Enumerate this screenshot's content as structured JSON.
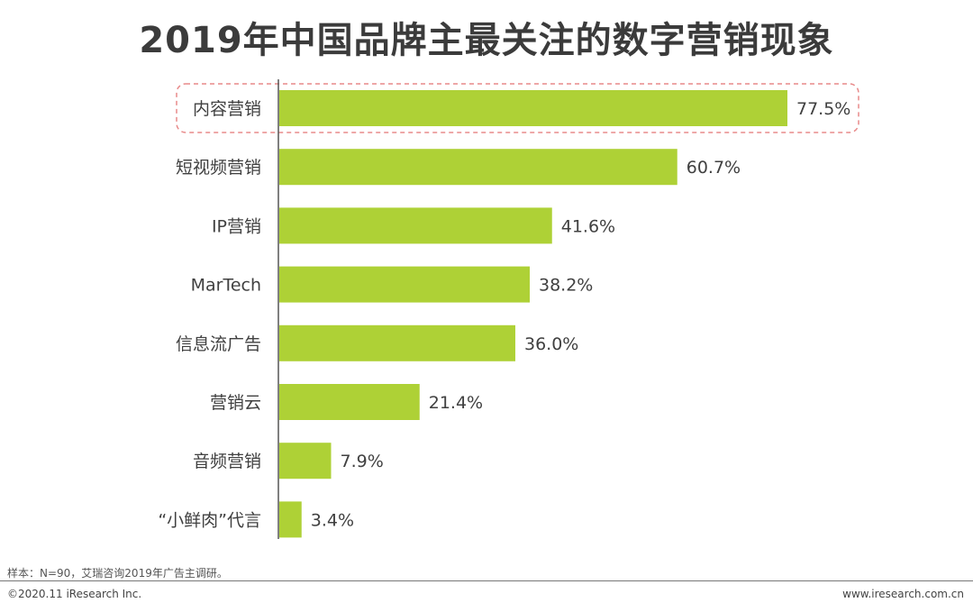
{
  "chart_data": {
    "type": "bar",
    "orientation": "horizontal",
    "title": "2019年中国品牌主最关注的数字营销现象",
    "categories": [
      "内容营销",
      "短视频营销",
      "IP营销",
      "MarTech",
      "信息流广告",
      "营销云",
      "音频营销",
      "“小鲜肉”代言"
    ],
    "values": [
      77.5,
      60.7,
      41.6,
      38.2,
      36.0,
      21.4,
      7.9,
      3.4
    ],
    "value_labels": [
      "77.5%",
      "60.7%",
      "41.6%",
      "38.2%",
      "36.0%",
      "21.4%",
      "7.9%",
      "3.4%"
    ],
    "unit": "%",
    "xlim": [
      0,
      100
    ],
    "grid": false,
    "bar_color": "#aed136",
    "highlight": {
      "category": "内容营销",
      "style": "dashed-rounded-box",
      "color": "#e88a8a"
    }
  },
  "footer": {
    "note": "样本：N=90，艾瑞咨询2019年广告主调研。",
    "copyright": "©2020.11 iResearch Inc.",
    "website": "www.iresearch.com.cn"
  }
}
